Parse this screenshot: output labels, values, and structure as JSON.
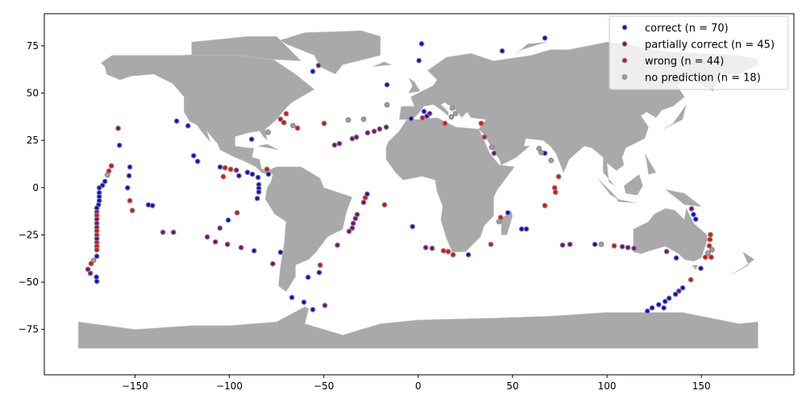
{
  "chart_data": {
    "type": "scatter",
    "title": "",
    "xlabel": "",
    "ylabel": "",
    "xlim": [
      -198,
      199
    ],
    "ylim": [
      -99,
      92
    ],
    "xticks": [
      -150,
      -100,
      -50,
      0,
      50,
      100,
      150
    ],
    "yticks": [
      -75,
      -50,
      -25,
      0,
      25,
      50,
      75
    ],
    "grid": false,
    "background": "world map (land in grey)",
    "legend_position": "top-right",
    "series": [
      {
        "name": "correct (n = 70)",
        "color": "#0000ff",
        "points": [
          [
            -127.9,
            35.2
          ],
          [
            -121.9,
            32.7
          ],
          [
            -88.2,
            25.6
          ],
          [
            -158.2,
            22.4
          ],
          [
            -118.9,
            16.9
          ],
          [
            -116.8,
            13.9
          ],
          [
            -152.7,
            10.9
          ],
          [
            -153.1,
            6.3
          ],
          [
            -153.9,
            -0.1
          ],
          [
            -142.9,
            -9.1
          ],
          [
            -140.7,
            -9.5
          ],
          [
            -165.9,
            3.3
          ],
          [
            -167.2,
            1.2
          ],
          [
            -168.9,
            -0.1
          ],
          [
            -168.9,
            -2.7
          ],
          [
            -168.9,
            -4.8
          ],
          [
            -168.9,
            -6.9
          ],
          [
            -169.3,
            -9.1
          ],
          [
            -170.2,
            -10.8
          ],
          [
            -170.2,
            -27.0
          ],
          [
            -170.2,
            -36.3
          ],
          [
            -170.4,
            -47.3
          ],
          [
            -170.2,
            -49.6
          ],
          [
            -104.9,
            10.9
          ],
          [
            -94.9,
            6.3
          ],
          [
            -90.4,
            8.1
          ],
          [
            -87.8,
            7.1
          ],
          [
            -84.8,
            5.4
          ],
          [
            -79.3,
            7.1
          ],
          [
            -84.4,
            1.6
          ],
          [
            -84.4,
            -0.3
          ],
          [
            -84.4,
            -2.3
          ],
          [
            -85.2,
            -5.7
          ],
          [
            -100.6,
            -17.2
          ],
          [
            -86.9,
            -33.4
          ],
          [
            -27.0,
            -3.4
          ],
          [
            -72.9,
            -34.2
          ],
          [
            -52.4,
            -44.9
          ],
          [
            -58.3,
            -47.4
          ],
          [
            -66.9,
            -58.1
          ],
          [
            -60.5,
            -60.6
          ],
          [
            -55.8,
            -64.5
          ],
          [
            1.8,
            76.1
          ],
          [
            0.4,
            67.2
          ],
          [
            44.5,
            72.3
          ],
          [
            67.1,
            79.1
          ],
          [
            -55.8,
            61.5
          ],
          [
            -16.5,
            54.4
          ],
          [
            -3.7,
            36.5
          ],
          [
            3.1,
            40.3
          ],
          [
            4.6,
            37.8
          ],
          [
            67.1,
            18.2
          ],
          [
            47.5,
            -13.3
          ],
          [
            54.8,
            -21.9
          ],
          [
            57.3,
            -21.9
          ],
          [
            -3.0,
            -20.6
          ],
          [
            26.6,
            -35.5
          ],
          [
            93.6,
            -30.0
          ],
          [
            136.7,
            -37.2
          ],
          [
            145.8,
            -14.2
          ],
          [
            147.0,
            -16.7
          ],
          [
            149.7,
            -42.7
          ],
          [
            140.1,
            -53.0
          ],
          [
            136.3,
            -56.4
          ],
          [
            132.9,
            -58.5
          ],
          [
            130.8,
            -60.2
          ],
          [
            127.4,
            -61.9
          ],
          [
            130.1,
            -63.6
          ],
          [
            123.9,
            -63.6
          ],
          [
            121.4,
            -65.3
          ]
        ]
      },
      {
        "name": "partially correct (n = 45)",
        "color": "#800080",
        "points": [
          [
            -158.9,
            31.4
          ],
          [
            -170.2,
            -12.9
          ],
          [
            -170.2,
            -16.7
          ],
          [
            -170.2,
            -18.9
          ],
          [
            -170.2,
            -21.0
          ],
          [
            -174.9,
            -43.2
          ],
          [
            -173.6,
            -45.3
          ],
          [
            -96.3,
            9.2
          ],
          [
            -105.0,
            -21.4
          ],
          [
            -111.7,
            -26.1
          ],
          [
            -107.4,
            -28.7
          ],
          [
            -101.0,
            -30.0
          ],
          [
            -93.8,
            -31.7
          ],
          [
            -135.2,
            -23.6
          ],
          [
            -129.6,
            -23.6
          ],
          [
            -77.0,
            -40.3
          ],
          [
            -16.9,
            32.0
          ],
          [
            -20.4,
            31.0
          ],
          [
            -23.3,
            29.8
          ],
          [
            -26.8,
            29.0
          ],
          [
            -32.7,
            26.7
          ],
          [
            -34.9,
            25.9
          ],
          [
            -41.7,
            23.3
          ],
          [
            -44.3,
            22.5
          ],
          [
            -28.9,
            -7.8
          ],
          [
            -32.3,
            -14.2
          ],
          [
            -33.2,
            -16.3
          ],
          [
            -34.4,
            -18.9
          ],
          [
            -34.9,
            -21.4
          ],
          [
            -36.6,
            -23.1
          ],
          [
            -42.8,
            -30.4
          ],
          [
            -49.4,
            -62.3
          ],
          [
            -52.8,
            64.6
          ],
          [
            6.1,
            39.2
          ],
          [
            40.2,
            18.2
          ],
          [
            4.0,
            -31.7
          ],
          [
            7.4,
            -32.1
          ],
          [
            76.5,
            -30.4
          ],
          [
            80.4,
            -30.0
          ],
          [
            108.1,
            -31.2
          ],
          [
            111.1,
            -31.7
          ],
          [
            114.3,
            -32.1
          ],
          [
            131.6,
            -33.8
          ],
          [
            144.8,
            -11.2
          ],
          [
            138.1,
            -54.7
          ]
        ]
      },
      {
        "name": "wrong (n = 44)",
        "color": "#ff0000",
        "points": [
          [
            -162.5,
            11.5
          ],
          [
            -163.8,
            8.8
          ],
          [
            -152.7,
            -6.9
          ],
          [
            -151.4,
            -12.1
          ],
          [
            -170.2,
            -14.6
          ],
          [
            -170.2,
            -22.9
          ],
          [
            -170.2,
            -25.0
          ],
          [
            -170.2,
            -29.0
          ],
          [
            -170.2,
            -31.0
          ],
          [
            -170.2,
            -32.9
          ],
          [
            -173.2,
            -40.2
          ],
          [
            -102.3,
            10.5
          ],
          [
            -99.3,
            9.7
          ],
          [
            -103.2,
            5.8
          ],
          [
            -80.1,
            9.7
          ],
          [
            -95.9,
            -13.3
          ],
          [
            -69.9,
            39.1
          ],
          [
            -72.9,
            36.2
          ],
          [
            -71.1,
            34.4
          ],
          [
            -63.9,
            31.5
          ],
          [
            -49.8,
            34.0
          ],
          [
            -28.0,
            -5.3
          ],
          [
            -17.8,
            -9.1
          ],
          [
            -51.9,
            -41.0
          ],
          [
            2.3,
            36.9
          ],
          [
            14.2,
            34.0
          ],
          [
            33.4,
            34.0
          ],
          [
            35.1,
            26.8
          ],
          [
            74.4,
            5.8
          ],
          [
            72.3,
            -0.1
          ],
          [
            72.7,
            -2.4
          ],
          [
            67.1,
            -9.5
          ],
          [
            43.7,
            -15.8
          ],
          [
            13.4,
            -33.4
          ],
          [
            15.9,
            -33.8
          ],
          [
            18.5,
            -35.5
          ],
          [
            38.5,
            -30.0
          ],
          [
            103.8,
            -30.8
          ],
          [
            154.8,
            -24.9
          ],
          [
            154.5,
            -27.4
          ],
          [
            154.2,
            -30.8
          ],
          [
            152.1,
            -36.8
          ],
          [
            155.2,
            -36.8
          ],
          [
            144.4,
            -48.7
          ]
        ]
      },
      {
        "name": "no prediction (n = 18)",
        "color": "#a0a0a0",
        "points": [
          [
            -79.5,
            29.3
          ],
          [
            -164.6,
            6.7
          ],
          [
            -171.9,
            -38.5
          ],
          [
            -66.3,
            32.8
          ],
          [
            -37.0,
            35.8
          ],
          [
            -28.9,
            36.2
          ],
          [
            -16.5,
            43.8
          ],
          [
            18.1,
            42.1
          ],
          [
            19.8,
            39.2
          ],
          [
            17.6,
            37.4
          ],
          [
            39.0,
            21.4
          ],
          [
            64.0,
            20.7
          ],
          [
            65.2,
            18.6
          ],
          [
            70.4,
            14.4
          ],
          [
            42.8,
            -18.0
          ],
          [
            97.0,
            -30.0
          ],
          [
            153.5,
            -34.6
          ],
          [
            155.6,
            -32.9
          ]
        ]
      }
    ]
  }
}
